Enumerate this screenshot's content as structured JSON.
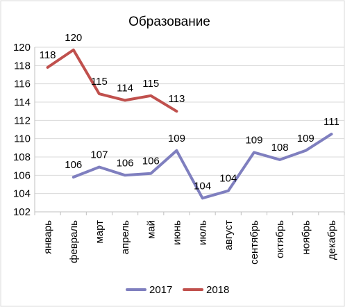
{
  "chart_data": {
    "type": "line",
    "title": "Образование",
    "categories": [
      "январь",
      "февраль",
      "март",
      "апрель",
      "май",
      "июнь",
      "июль",
      "август",
      "сентябрь",
      "октябрь",
      "ноябрь",
      "декабрь"
    ],
    "series": [
      {
        "name": "2017",
        "color": "#7f7fbf",
        "values": [
          null,
          105.8,
          106.9,
          106.0,
          106.2,
          108.7,
          103.5,
          104.3,
          108.5,
          107.7,
          108.7,
          110.5
        ],
        "labels": [
          null,
          "106",
          "107",
          "106",
          "106",
          "109",
          "104",
          "104",
          "109",
          "108",
          "109",
          "111"
        ]
      },
      {
        "name": "2018",
        "color": "#c0504d",
        "values": [
          117.8,
          119.7,
          114.9,
          114.2,
          114.7,
          113.0,
          null,
          null,
          null,
          null,
          null,
          null
        ],
        "labels": [
          "118",
          "120",
          "115",
          "114",
          "115",
          "113",
          null,
          null,
          null,
          null,
          null,
          null
        ]
      }
    ],
    "ylim": [
      102,
      120
    ],
    "yticks": [
      "102",
      "104",
      "106",
      "108",
      "110",
      "112",
      "114",
      "116",
      "118",
      "120"
    ],
    "grid": true,
    "legend": "bottom"
  }
}
